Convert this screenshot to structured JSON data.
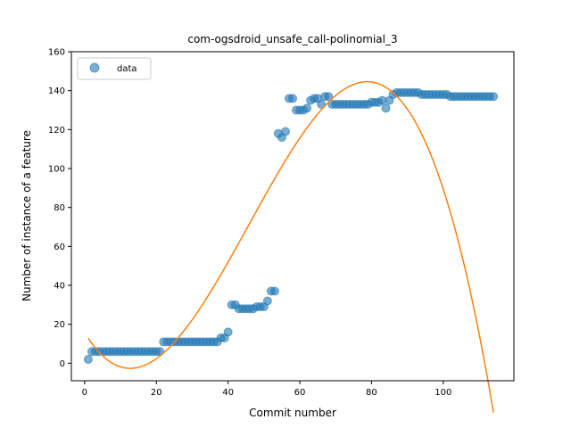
{
  "chart_data": {
    "type": "scatter",
    "title": "com-ogsdroid_unsafe_call-polinomial_3",
    "xlabel": "Commit number",
    "ylabel": "Number of instance of a feature",
    "xlim": [
      -3.7,
      119.7
    ],
    "ylim": [
      -9,
      160
    ],
    "xticks": [
      0,
      20,
      40,
      60,
      80,
      100
    ],
    "yticks": [
      0,
      20,
      40,
      60,
      80,
      100,
      120,
      140,
      160
    ],
    "grid": false,
    "legend_position": "top-left",
    "series": [
      {
        "name": "data",
        "kind": "scatter",
        "color": "#1f77b4",
        "x": [
          1,
          2,
          3,
          4,
          5,
          6,
          7,
          8,
          9,
          10,
          11,
          12,
          13,
          14,
          15,
          16,
          17,
          18,
          19,
          20,
          21,
          22,
          23,
          24,
          25,
          26,
          27,
          28,
          29,
          30,
          31,
          32,
          33,
          34,
          35,
          36,
          37,
          38,
          39,
          40,
          41,
          42,
          43,
          44,
          45,
          46,
          47,
          48,
          49,
          50,
          51,
          52,
          53,
          54,
          55,
          56,
          57,
          58,
          59,
          60,
          61,
          62,
          63,
          64,
          65,
          66,
          67,
          68,
          69,
          70,
          71,
          72,
          73,
          74,
          75,
          76,
          77,
          78,
          79,
          80,
          81,
          82,
          83,
          84,
          85,
          86,
          87,
          88,
          89,
          90,
          91,
          92,
          93,
          94,
          95,
          96,
          97,
          98,
          99,
          100,
          101,
          102,
          103,
          104,
          105,
          106,
          107,
          108,
          109,
          110,
          111,
          112,
          113,
          114
        ],
        "y": [
          2,
          6,
          6,
          6,
          6,
          6,
          6,
          6,
          6,
          6,
          6,
          6,
          6,
          6,
          6,
          6,
          6,
          6,
          6,
          6,
          6,
          11,
          11,
          11,
          11,
          11,
          11,
          11,
          11,
          11,
          11,
          11,
          11,
          11,
          11,
          11,
          11,
          13,
          13,
          16,
          30,
          30,
          28,
          28,
          28,
          28,
          28,
          29,
          29,
          29,
          32,
          37,
          37,
          118,
          116,
          119,
          136,
          136,
          130,
          130,
          130,
          131,
          135,
          136,
          136,
          133,
          137,
          137,
          133,
          133,
          133,
          133,
          133,
          133,
          133,
          133,
          133,
          133,
          133,
          134,
          134,
          134,
          135,
          131,
          135,
          138,
          139,
          139,
          139,
          139,
          139,
          139,
          139,
          138,
          138,
          138,
          138,
          138,
          138,
          138,
          138,
          137,
          137,
          137,
          137,
          137,
          137,
          137,
          137,
          137,
          137,
          137,
          137,
          137
        ]
      },
      {
        "name": "",
        "kind": "line",
        "color": "#ff7f0e",
        "x_range": [
          1,
          114
        ],
        "coefficients": [
          15.8,
          -3.064,
          0.14,
          -0.00102
        ]
      }
    ]
  }
}
